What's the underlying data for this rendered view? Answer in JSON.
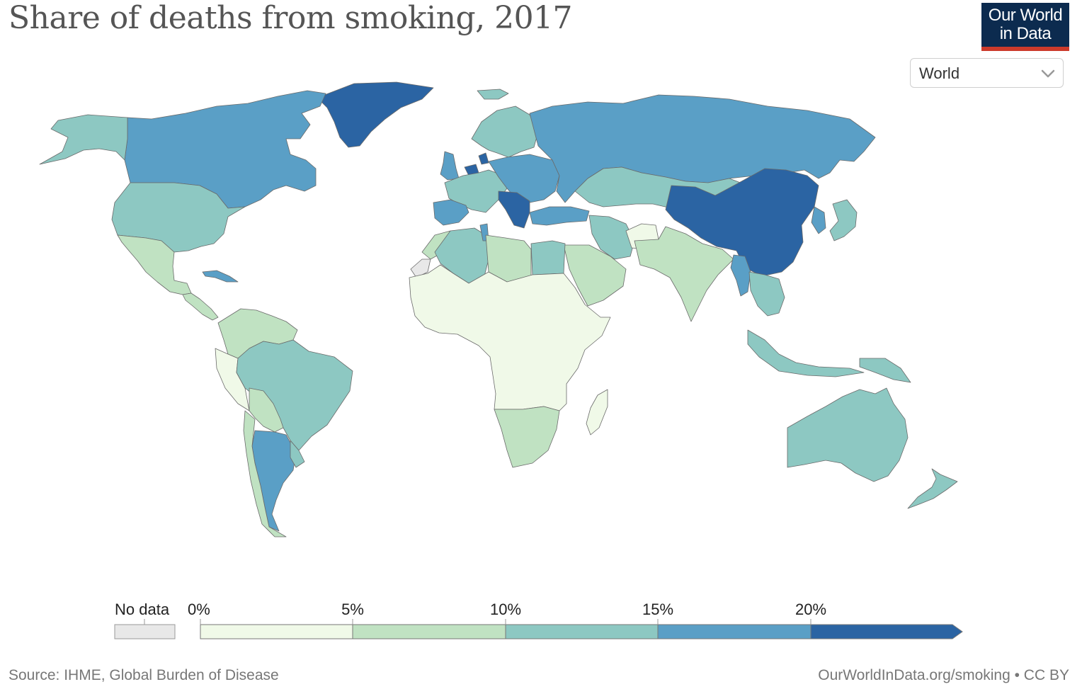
{
  "title": "Share of deaths from smoking, 2017",
  "logo": {
    "line1": "Our World",
    "line2": "in Data"
  },
  "region_selector": {
    "value": "World"
  },
  "legend": {
    "no_data_label": "No data",
    "no_data_color": "#e8e8e8",
    "tick_labels": [
      "0%",
      "5%",
      "10%",
      "15%",
      "20%"
    ],
    "bins": [
      {
        "range": [
          0,
          5
        ],
        "color": "#f0f9e8"
      },
      {
        "range": [
          5,
          10
        ],
        "color": "#c0e2c2"
      },
      {
        "range": [
          10,
          15
        ],
        "color": "#8dc8c2"
      },
      {
        "range": [
          15,
          20
        ],
        "color": "#5a9fc6"
      },
      {
        "range": [
          20,
          null
        ],
        "color": "#2b64a3"
      }
    ]
  },
  "source": "Source: IHME, Global Burden of Disease",
  "credit": "OurWorldInData.org/smoking • CC BY",
  "chart_data": {
    "type": "map",
    "metric": "Share of deaths from smoking",
    "year": 2017,
    "unit": "%",
    "regions": [
      {
        "name": "Greenland",
        "bin": 4
      },
      {
        "name": "Canada",
        "bin": 3
      },
      {
        "name": "Alaska",
        "bin": 2
      },
      {
        "name": "United States",
        "bin": 2
      },
      {
        "name": "Mexico",
        "bin": 1
      },
      {
        "name": "Central America",
        "bin": 1
      },
      {
        "name": "Cuba",
        "bin": 3
      },
      {
        "name": "Colombia/Venezuela",
        "bin": 1
      },
      {
        "name": "Peru",
        "bin": 0
      },
      {
        "name": "Brazil",
        "bin": 2
      },
      {
        "name": "Bolivia/Paraguay",
        "bin": 1
      },
      {
        "name": "Argentina",
        "bin": 3
      },
      {
        "name": "Chile",
        "bin": 1
      },
      {
        "name": "Uruguay",
        "bin": 2
      },
      {
        "name": "Iceland",
        "bin": 2
      },
      {
        "name": "United Kingdom",
        "bin": 3
      },
      {
        "name": "Netherlands",
        "bin": 4
      },
      {
        "name": "Denmark",
        "bin": 4
      },
      {
        "name": "Scandinavia",
        "bin": 2
      },
      {
        "name": "Western Europe",
        "bin": 2
      },
      {
        "name": "Spain",
        "bin": 3
      },
      {
        "name": "Central/Eastern Europe",
        "bin": 3
      },
      {
        "name": "Balkans",
        "bin": 4
      },
      {
        "name": "Russia",
        "bin": 3
      },
      {
        "name": "Turkey",
        "bin": 3
      },
      {
        "name": "Kazakhstan/Mongolia",
        "bin": 2
      },
      {
        "name": "China",
        "bin": 4
      },
      {
        "name": "Korea",
        "bin": 3
      },
      {
        "name": "Japan",
        "bin": 2
      },
      {
        "name": "Iran",
        "bin": 2
      },
      {
        "name": "Afghanistan",
        "bin": 0
      },
      {
        "name": "Pakistan/India",
        "bin": 1
      },
      {
        "name": "Myanmar",
        "bin": 3
      },
      {
        "name": "Southeast Asia",
        "bin": 2
      },
      {
        "name": "Indonesia",
        "bin": 2
      },
      {
        "name": "Papua New Guinea",
        "bin": 2
      },
      {
        "name": "Australia",
        "bin": 2
      },
      {
        "name": "New Zealand",
        "bin": 2
      },
      {
        "name": "Arabian Peninsula",
        "bin": 1
      },
      {
        "name": "Morocco",
        "bin": 1
      },
      {
        "name": "Algeria",
        "bin": 2
      },
      {
        "name": "Tunisia",
        "bin": 3
      },
      {
        "name": "Libya",
        "bin": 1
      },
      {
        "name": "Egypt",
        "bin": 2
      },
      {
        "name": "Western Sahara",
        "bin": null
      },
      {
        "name": "Sub-Saharan Africa",
        "bin": 0
      },
      {
        "name": "Southern Africa",
        "bin": 1
      },
      {
        "name": "Madagascar",
        "bin": 0
      }
    ]
  }
}
